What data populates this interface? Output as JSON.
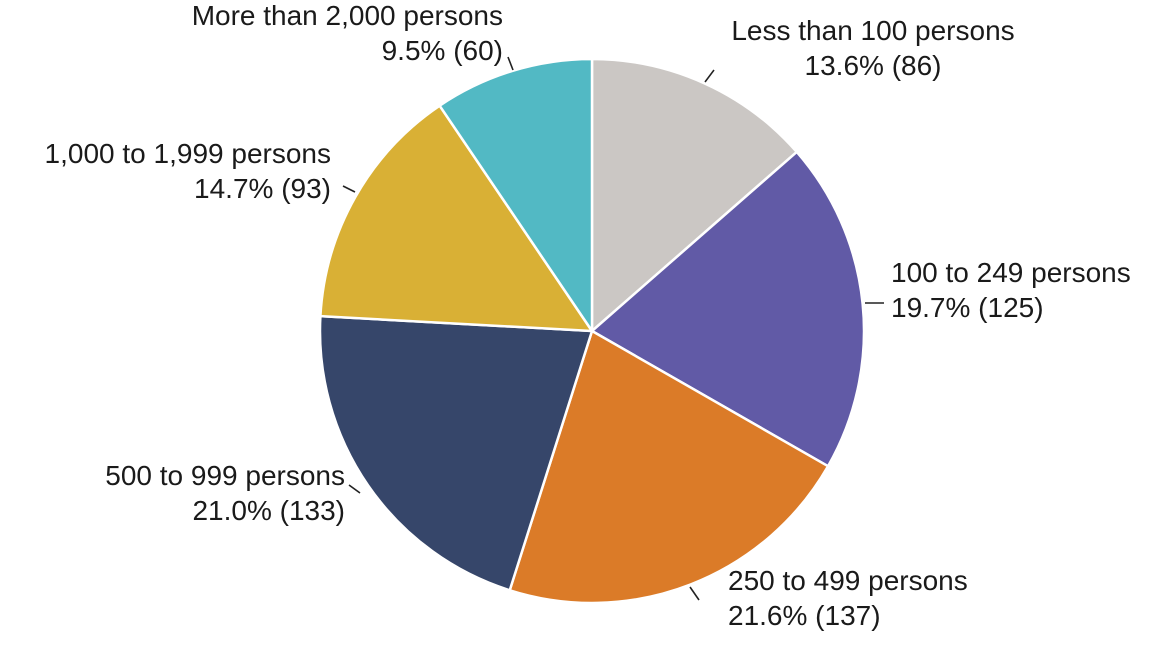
{
  "chart_data": {
    "type": "pie",
    "start_angle_deg": 0,
    "direction": "clockwise",
    "slices": [
      {
        "category": "Less than 100 persons",
        "percent_label": "13.6% (86)",
        "percent": 13.6,
        "value": 86,
        "color": "#CBC7C4"
      },
      {
        "category": "100 to 249 persons",
        "percent_label": "19.7% (125)",
        "percent": 19.7,
        "value": 125,
        "color": "#615AA6"
      },
      {
        "category": "250 to 499 persons",
        "percent_label": "21.6% (137)",
        "percent": 21.6,
        "value": 137,
        "color": "#DB7B28"
      },
      {
        "category": "500 to 999 persons",
        "percent_label": "21.0% (133)",
        "percent": 21.0,
        "value": 133,
        "color": "#36466A"
      },
      {
        "category": "1,000 to 1,999 persons",
        "percent_label": "14.7% (93)",
        "percent": 14.7,
        "value": 93,
        "color": "#D9B035"
      },
      {
        "category": "More than 2,000 persons",
        "percent_label": "9.5% (60)",
        "percent": 9.5,
        "value": 60,
        "color": "#52B9C4"
      }
    ]
  }
}
